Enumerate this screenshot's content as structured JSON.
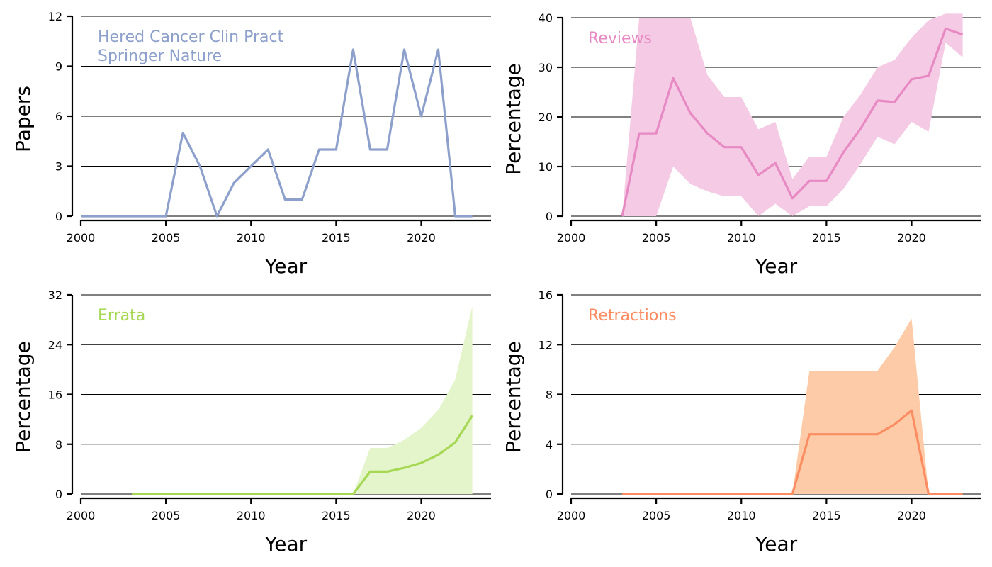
{
  "chart_data": [
    {
      "type": "line",
      "annotation": [
        "Hered Cancer Clin Pract",
        "Springer Nature"
      ],
      "xlabel": "Year",
      "ylabel": "Papers",
      "xlim": [
        2000,
        2024
      ],
      "ylim": [
        0,
        12
      ],
      "xticks": [
        2000,
        2005,
        2010,
        2015,
        2020
      ],
      "yticks": [
        0,
        3,
        6,
        9,
        12
      ],
      "grid": "horizontal",
      "color": "#8da0cb",
      "series": [
        {
          "x": [
            2000,
            2001,
            2002,
            2003,
            2004,
            2005,
            2006,
            2007,
            2008,
            2009,
            2010,
            2011,
            2012,
            2013,
            2014,
            2015,
            2016,
            2017,
            2018,
            2019,
            2020,
            2021,
            2022,
            2023
          ],
          "y": [
            0,
            0,
            0,
            0,
            0,
            0,
            5,
            3,
            0,
            2,
            3,
            4,
            1,
            1,
            4,
            4,
            10,
            4,
            4,
            10,
            6,
            10,
            0,
            0
          ]
        }
      ]
    },
    {
      "type": "area",
      "annotation": [
        "Reviews"
      ],
      "xlabel": "Year",
      "ylabel": "Percentage",
      "xlim": [
        2000,
        2024
      ],
      "ylim": [
        0,
        40
      ],
      "xticks": [
        2000,
        2005,
        2010,
        2015,
        2020
      ],
      "yticks": [
        0,
        10,
        20,
        30,
        40
      ],
      "grid": "horizontal",
      "color": "#e78ac3",
      "band_color": "#f5cae4",
      "series": [
        {
          "x": [
            2003,
            2004,
            2005,
            2006,
            2007,
            2008,
            2009,
            2010,
            2011,
            2012,
            2013,
            2014,
            2015,
            2016,
            2017,
            2018,
            2019,
            2020,
            2021,
            2022,
            2023
          ],
          "y": [
            0,
            16.7,
            16.7,
            27.8,
            20.8,
            16.7,
            13.9,
            13.9,
            8.3,
            10.7,
            3.6,
            7.1,
            7.1,
            12.9,
            17.6,
            23.3,
            23.0,
            27.6,
            28.3,
            37.8,
            36.6
          ],
          "lower": [
            0,
            0,
            0,
            10,
            6.5,
            5,
            4,
            4,
            0,
            2.5,
            0,
            2,
            2,
            5.5,
            10.5,
            16,
            14.5,
            19,
            17,
            35,
            32
          ],
          "upper": [
            0,
            40,
            40,
            40,
            40,
            28.5,
            24,
            24,
            17.5,
            19,
            7.5,
            12,
            12,
            20,
            24.5,
            30,
            31.5,
            36,
            39.5,
            41,
            41
          ]
        }
      ]
    },
    {
      "type": "area",
      "annotation": [
        "Errata"
      ],
      "xlabel": "Year",
      "ylabel": "Percentage",
      "xlim": [
        2000,
        2024
      ],
      "ylim": [
        0,
        32
      ],
      "xticks": [
        2000,
        2005,
        2010,
        2015,
        2020
      ],
      "yticks": [
        0,
        8,
        16,
        24,
        32
      ],
      "grid": "horizontal",
      "color": "#a6d854",
      "band_color": "#e4f4cb",
      "series": [
        {
          "x": [
            2003,
            2004,
            2005,
            2006,
            2007,
            2008,
            2009,
            2010,
            2011,
            2012,
            2013,
            2014,
            2015,
            2016,
            2017,
            2018,
            2019,
            2020,
            2021,
            2022,
            2023
          ],
          "y": [
            0,
            0,
            0,
            0,
            0,
            0,
            0,
            0,
            0,
            0,
            0,
            0,
            0,
            0,
            3.6,
            3.6,
            4.2,
            5,
            6.3,
            8.3,
            12.6
          ],
          "lower": [
            0,
            0,
            0,
            0,
            0,
            0,
            0,
            0,
            0,
            0,
            0,
            0,
            0,
            0,
            0,
            0,
            0,
            0,
            0,
            0,
            0
          ],
          "upper": [
            0,
            0,
            0,
            0,
            0,
            0,
            0,
            0,
            0,
            0,
            0,
            0,
            0,
            0,
            7.4,
            7.4,
            8.7,
            10.6,
            13.5,
            18.4,
            30.2
          ]
        }
      ]
    },
    {
      "type": "area",
      "annotation": [
        "Retractions"
      ],
      "xlabel": "Year",
      "ylabel": "Percentage",
      "xlim": [
        2000,
        2024
      ],
      "ylim": [
        0,
        16
      ],
      "xticks": [
        2000,
        2005,
        2010,
        2015,
        2020
      ],
      "yticks": [
        0,
        4,
        8,
        12,
        16
      ],
      "grid": "horizontal",
      "color": "#fc8d62",
      "band_color": "#fdcba8",
      "series": [
        {
          "x": [
            2003,
            2004,
            2005,
            2006,
            2007,
            2008,
            2009,
            2010,
            2011,
            2012,
            2013,
            2014,
            2015,
            2016,
            2017,
            2018,
            2019,
            2020,
            2021,
            2022,
            2023
          ],
          "y": [
            0,
            0,
            0,
            0,
            0,
            0,
            0,
            0,
            0,
            0,
            0,
            4.8,
            4.8,
            4.8,
            4.8,
            4.8,
            5.6,
            6.7,
            0,
            0,
            0
          ],
          "lower": [
            0,
            0,
            0,
            0,
            0,
            0,
            0,
            0,
            0,
            0,
            0,
            0,
            0,
            0,
            0,
            0,
            0,
            0,
            0,
            0,
            0
          ],
          "upper": [
            0,
            0,
            0,
            0,
            0,
            0,
            0,
            0,
            0,
            0,
            0,
            9.9,
            9.9,
            9.9,
            9.9,
            9.9,
            11.8,
            14.1,
            0,
            0,
            0
          ]
        }
      ]
    }
  ]
}
